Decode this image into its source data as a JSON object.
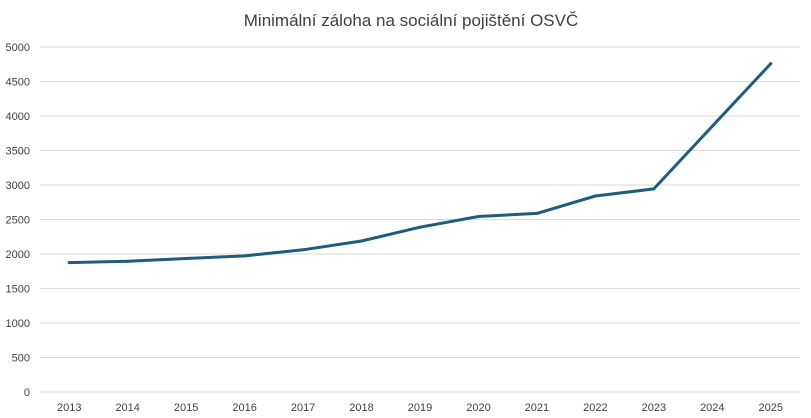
{
  "chart_data": {
    "type": "line",
    "title": "Minimální záloha na sociální pojištění OSVČ",
    "xlabel": "",
    "ylabel": "",
    "categories": [
      "2013",
      "2014",
      "2015",
      "2016",
      "2017",
      "2018",
      "2019",
      "2020",
      "2021",
      "2022",
      "2023",
      "2024",
      "2025"
    ],
    "series": [
      {
        "values": [
          1876,
          1894,
          1935,
          1972,
          2061,
          2189,
          2388,
          2544,
          2588,
          2841,
          2944,
          3852,
          4759
        ]
      }
    ],
    "ylim": [
      0,
      5000
    ],
    "yticks": [
      "0",
      "500",
      "1000",
      "1500",
      "2000",
      "2500",
      "3000",
      "3500",
      "4000",
      "4500",
      "5000"
    ],
    "grid": true,
    "legend": "none",
    "colors": {
      "line": "#1f5c7d",
      "grid": "#d9d9d9",
      "text": "#404040"
    }
  }
}
